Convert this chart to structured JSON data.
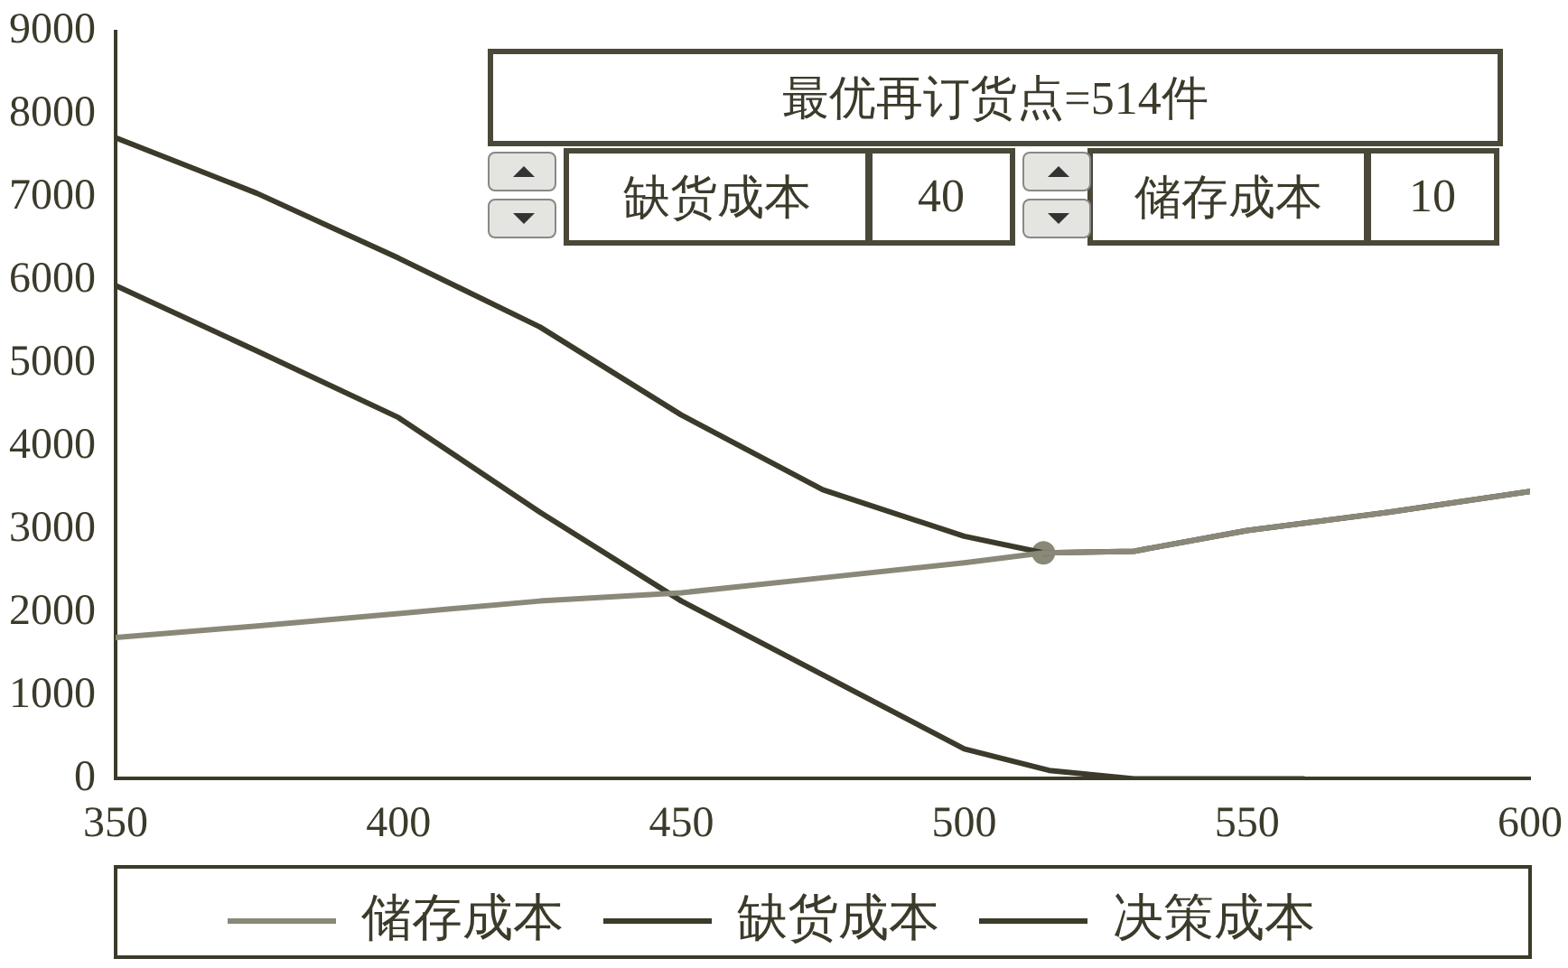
{
  "chart_data": {
    "type": "line",
    "xlim": [
      350,
      600
    ],
    "xticks": [
      350,
      400,
      450,
      500,
      550,
      600
    ],
    "ylim": [
      0,
      9000
    ],
    "yticks": [
      0,
      1000,
      2000,
      3000,
      4000,
      5000,
      6000,
      7000,
      8000,
      9000
    ],
    "grid": false,
    "legend": "bottom",
    "marker": "none",
    "line_style": "solid",
    "series": [
      {
        "name": "储存成本",
        "color": "#8a8878",
        "x": [
          350,
          375,
          400,
          425,
          450,
          475,
          500,
          514,
          530,
          550,
          575,
          600
        ],
        "values": [
          1700,
          1840,
          1990,
          2140,
          2240,
          2420,
          2600,
          2720,
          2740,
          2990,
          3210,
          3460
        ]
      },
      {
        "name": "缺货成本",
        "color": "#3c3a2a",
        "x": [
          350,
          375,
          400,
          425,
          450,
          475,
          500,
          515,
          530,
          545,
          560
        ],
        "values": [
          5940,
          5150,
          4350,
          3210,
          2140,
          1250,
          360,
          100,
          0,
          0,
          0
        ]
      },
      {
        "name": "决策成本",
        "color": "#3c3a2a",
        "x": [
          350,
          375,
          400,
          425,
          450,
          475,
          500,
          514,
          530,
          550,
          575,
          600
        ],
        "values": [
          7720,
          7050,
          6270,
          5440,
          4380,
          3480,
          2920,
          2720,
          2740,
          2990,
          3210,
          3460
        ]
      },
      {
        "type": "scatter",
        "marker": "circle",
        "color": "#8a8878",
        "x": [
          514
        ],
        "values": [
          2720
        ]
      }
    ],
    "annotations": [
      "最优再订货点=514件",
      "缺货成本",
      "40",
      "储存成本",
      "10"
    ]
  }
}
